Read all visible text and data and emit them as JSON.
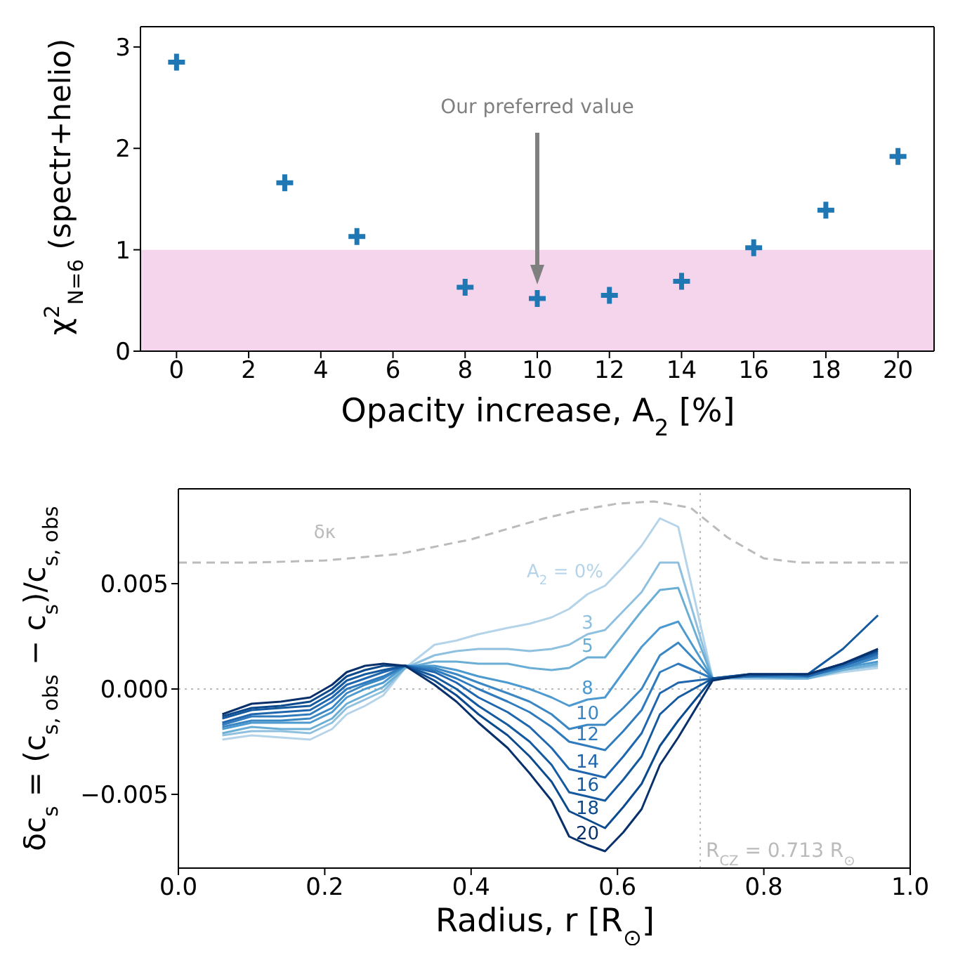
{
  "chart_data": [
    {
      "type": "scatter",
      "xlabel": "Opacity increase, A$_{2}$ [%]",
      "ylabel": "χ$^{2}$$_{N=6}$ (spectr+helio)",
      "x": [
        0,
        3,
        5,
        8,
        10,
        12,
        14,
        16,
        18,
        20
      ],
      "values": [
        2.85,
        1.66,
        1.13,
        0.63,
        0.52,
        0.55,
        0.69,
        1.02,
        1.39,
        1.92
      ],
      "color": "#1f77b4",
      "marker": "cross",
      "xlim": [
        -1,
        21
      ],
      "xticks": [
        0,
        2,
        4,
        6,
        8,
        10,
        12,
        14,
        16,
        18,
        20
      ],
      "ylim": [
        0,
        3.2
      ],
      "yticks": [
        0,
        1,
        2,
        3
      ],
      "bands": [
        {
          "axis": "y",
          "from": 0,
          "to": 1,
          "color": "#f5d5ec"
        }
      ],
      "annotations": [
        "Our preferred value"
      ]
    },
    {
      "type": "line",
      "xlabel": "Radius, r [R$_{⊙}$]",
      "ylabel": "δc$_{s}$ = (c$_{s, obs}$ − c$_{s}$)/c$_{s, obs}$",
      "xlim": [
        0,
        1
      ],
      "xticks": [
        {
          "value": 0,
          "label": "0.0"
        },
        {
          "value": 0.2,
          "label": "0.2"
        },
        {
          "value": 0.4,
          "label": "0.4"
        },
        {
          "value": 0.6,
          "label": "0.6"
        },
        {
          "value": 0.8,
          "label": "0.8"
        },
        {
          "value": 1,
          "label": "1.0"
        }
      ],
      "ylim": [
        -0.0085,
        0.0095
      ],
      "yticks": [
        {
          "value": -0.005,
          "label": "−0.005"
        },
        {
          "value": 0,
          "label": "0.000"
        },
        {
          "value": 0.005,
          "label": "0.005"
        }
      ],
      "x": [
        0.06,
        0.1,
        0.14,
        0.18,
        0.21,
        0.23,
        0.255,
        0.28,
        0.31,
        0.35,
        0.38,
        0.41,
        0.45,
        0.48,
        0.51,
        0.534,
        0.559,
        0.583,
        0.608,
        0.633,
        0.658,
        0.683,
        0.73,
        0.78,
        0.835,
        0.86,
        0.908,
        0.956
      ],
      "ref_lines": [
        {
          "axis": "y",
          "value": 0,
          "color": "#bbbbbb",
          "line_style": "dotted"
        },
        {
          "axis": "x",
          "value": 0.713,
          "label": "R$_{CZ}$ = 0.713 R$_{⊙}$",
          "color": "#bbbbbb",
          "line_style": "dotted"
        }
      ],
      "series": [
        {
          "name": "δκ",
          "color": "#bbbbbb",
          "line_style": "dashed",
          "x": [
            0,
            0.1,
            0.2,
            0.3,
            0.4,
            0.5,
            0.55,
            0.6,
            0.65,
            0.7,
            0.75,
            0.8,
            0.85,
            1
          ],
          "values": [
            0.006,
            0.006,
            0.0061,
            0.0064,
            0.0071,
            0.0081,
            0.0085,
            0.0088,
            0.0089,
            0.0086,
            0.0072,
            0.0062,
            0.006,
            0.006
          ]
        },
        {
          "name": "A$_{2}$ = 0%",
          "color": "#b5d4e9",
          "values": [
            -0.0024,
            -0.0022,
            -0.0023,
            -0.0024,
            -0.0019,
            -0.0012,
            -0.0008,
            -0.0003,
            0.001,
            0.0021,
            0.0023,
            0.0026,
            0.0029,
            0.0031,
            0.0034,
            0.0038,
            0.0045,
            0.0049,
            0.0058,
            0.0068,
            0.0081,
            0.0077,
            0.0005,
            0.0005,
            0.0005,
            0.0005,
            0.0008,
            0.001
          ]
        },
        {
          "name": "3",
          "color": "#8fc0e0",
          "values": [
            -0.0022,
            -0.002,
            -0.002,
            -0.0021,
            -0.0016,
            -0.0009,
            -0.0005,
            -0.0001,
            0.001,
            0.0016,
            0.0018,
            0.0019,
            0.0019,
            0.0018,
            0.0019,
            0.0021,
            0.0026,
            0.0028,
            0.0037,
            0.0046,
            0.006,
            0.006,
            0.0005,
            0.0005,
            0.0005,
            0.0005,
            0.0009,
            0.0011
          ]
        },
        {
          "name": "5",
          "color": "#6aaed6",
          "values": [
            -0.0021,
            -0.0018,
            -0.0019,
            -0.0019,
            -0.0014,
            -0.0007,
            -0.0003,
            0.0001,
            0.001,
            0.0013,
            0.0013,
            0.0012,
            0.0012,
            0.001,
            0.0009,
            0.001,
            0.0015,
            0.0015,
            0.0026,
            0.0037,
            0.0047,
            0.0048,
            0.0005,
            0.0006,
            0.0005,
            0.0005,
            0.0009,
            0.0012
          ]
        },
        {
          "name": "8",
          "color": "#4d9ad0",
          "values": [
            -0.0019,
            -0.0016,
            -0.0016,
            -0.0016,
            -0.0011,
            -0.0004,
            0.0,
            0.0003,
            0.0011,
            0.0011,
            0.0009,
            0.0006,
            0.0003,
            0.0,
            -0.0004,
            -0.0008,
            -0.0005,
            -0.0004,
            0.0008,
            0.002,
            0.0029,
            0.0032,
            0.0005,
            0.0006,
            0.0006,
            0.0006,
            0.001,
            0.0013
          ]
        },
        {
          "name": "10",
          "color": "#3a87c4",
          "values": [
            -0.0018,
            -0.0015,
            -0.0015,
            -0.0014,
            -0.0009,
            -0.0002,
            0.0002,
            0.0005,
            0.0011,
            0.001,
            0.0007,
            0.0003,
            -0.0002,
            -0.0006,
            -0.0012,
            -0.0019,
            -0.0017,
            -0.0017,
            -0.0009,
            0.0,
            0.0016,
            0.0022,
            0.0005,
            0.0006,
            0.0006,
            0.0006,
            0.001,
            0.0015
          ]
        },
        {
          "name": "12",
          "color": "#2f7bbd",
          "values": [
            -0.0017,
            -0.0013,
            -0.0013,
            -0.0012,
            -0.0006,
            0.0,
            0.0003,
            0.0006,
            0.0011,
            0.0009,
            0.0005,
            0.0,
            -0.0006,
            -0.0011,
            -0.0018,
            -0.0025,
            -0.0027,
            -0.0029,
            -0.002,
            -0.001,
            0.0008,
            0.0012,
            0.0005,
            0.0006,
            0.0006,
            0.0006,
            0.0011,
            0.0016
          ]
        },
        {
          "name": "14",
          "color": "#1f66ae",
          "values": [
            -0.0016,
            -0.0012,
            -0.0011,
            -0.001,
            -0.0004,
            0.0002,
            0.0005,
            0.0008,
            0.0011,
            0.0008,
            0.0003,
            -0.0004,
            -0.0011,
            -0.0018,
            -0.0028,
            -0.0038,
            -0.004,
            -0.0042,
            -0.0032,
            -0.0021,
            -0.0002,
            0.0003,
            0.0005,
            0.0006,
            0.0007,
            0.0006,
            0.0011,
            0.0017
          ]
        },
        {
          "name": "16",
          "color": "#155a9f",
          "values": [
            -0.0014,
            -0.001,
            -0.0009,
            -0.0008,
            -0.0002,
            0.0004,
            0.0007,
            0.0009,
            0.0011,
            0.0006,
            0.0,
            -0.0008,
            -0.0017,
            -0.0025,
            -0.0036,
            -0.0049,
            -0.0051,
            -0.0053,
            -0.0043,
            -0.0032,
            -0.0012,
            -0.0004,
            0.0005,
            0.0007,
            0.0007,
            0.0007,
            0.0019,
            0.0035
          ]
        },
        {
          "name": "18",
          "color": "#0c4a8e",
          "values": [
            -0.0013,
            -0.0009,
            -0.0008,
            -0.0006,
            0.0,
            0.0006,
            0.0009,
            0.0011,
            0.0011,
            0.0004,
            -0.0003,
            -0.0012,
            -0.0022,
            -0.0032,
            -0.0044,
            -0.0058,
            -0.0062,
            -0.0066,
            -0.0056,
            -0.0045,
            -0.0027,
            -0.0015,
            0.0005,
            0.0007,
            0.0007,
            0.0007,
            0.0012,
            0.0018
          ]
        },
        {
          "name": "20",
          "color": "#08306b",
          "values": [
            -0.0012,
            -0.0007,
            -0.0006,
            -0.0004,
            0.0002,
            0.0008,
            0.0011,
            0.0012,
            0.0011,
            0.0002,
            -0.0006,
            -0.0016,
            -0.0028,
            -0.004,
            -0.0053,
            -0.007,
            -0.0074,
            -0.0077,
            -0.0068,
            -0.0057,
            -0.0036,
            -0.0023,
            0.0004,
            0.0007,
            0.0007,
            0.0007,
            0.0012,
            0.0019
          ]
        }
      ]
    }
  ]
}
